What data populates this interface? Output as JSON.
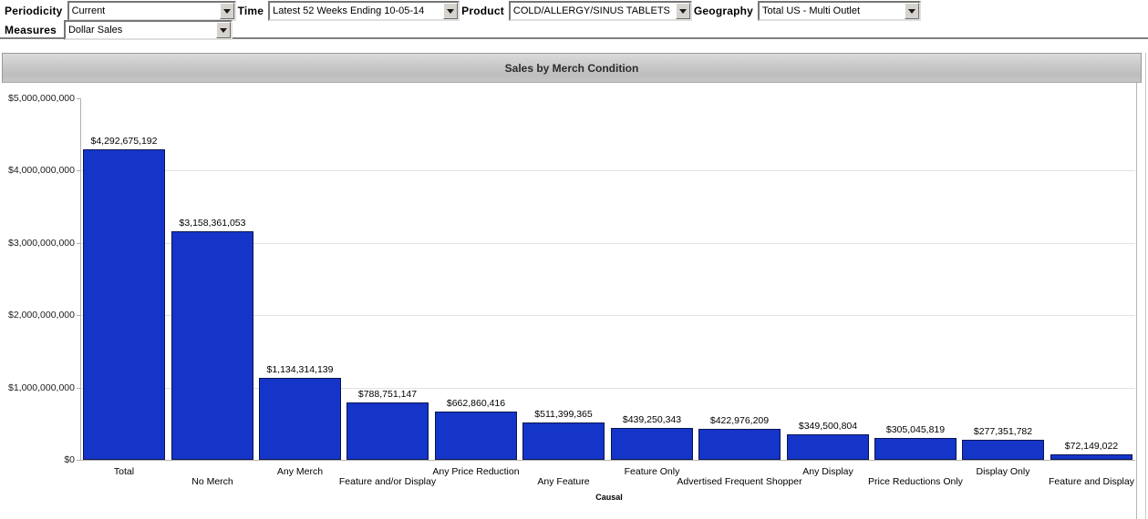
{
  "filters": {
    "row1": [
      {
        "label": "Periodicity",
        "value": "Current"
      },
      {
        "label": "Time",
        "value": "Latest 52 Weeks Ending 10-05-14"
      },
      {
        "label": "Product",
        "value": "COLD/ALLERGY/SINUS TABLETS"
      },
      {
        "label": "Geography",
        "value": "Total US - Multi Outlet"
      }
    ],
    "row2": [
      {
        "label": "Measures",
        "value": "Dollar Sales"
      }
    ]
  },
  "chart_data": {
    "type": "bar",
    "title": "Sales by Merch Condition",
    "xlabel": "Causal",
    "ylabel": "",
    "ylim": [
      0,
      5000000000
    ],
    "grid": true,
    "legend": false,
    "bar_color": "#1535c8",
    "bar_border_color": "#0a1452",
    "categories": [
      "Total",
      "No Merch",
      "Any Merch",
      "Feature and/or Display",
      "Any Price Reduction",
      "Any Feature",
      "Feature Only",
      "Advertised Frequent Shopper",
      "Any Display",
      "Price Reductions Only",
      "Display Only",
      "Feature and Display"
    ],
    "values": [
      4292675192,
      3158361053,
      1134314139,
      788751147,
      662860416,
      511399365,
      439250343,
      422976209,
      349500804,
      305045819,
      277351782,
      72149022
    ],
    "value_labels": [
      "$4,292,675,192",
      "$3,158,361,053",
      "$1,134,314,139",
      "$788,751,147",
      "$662,860,416",
      "$511,399,365",
      "$439,250,343",
      "$422,976,209",
      "$349,500,804",
      "$305,045,819",
      "$277,351,782",
      "$72,149,022"
    ],
    "y_tick_labels": [
      "$5,000,000,000",
      "$4,000,000,000",
      "$3,000,000,000",
      "$2,000,000,000",
      "$1,000,000,000",
      "$0"
    ]
  }
}
